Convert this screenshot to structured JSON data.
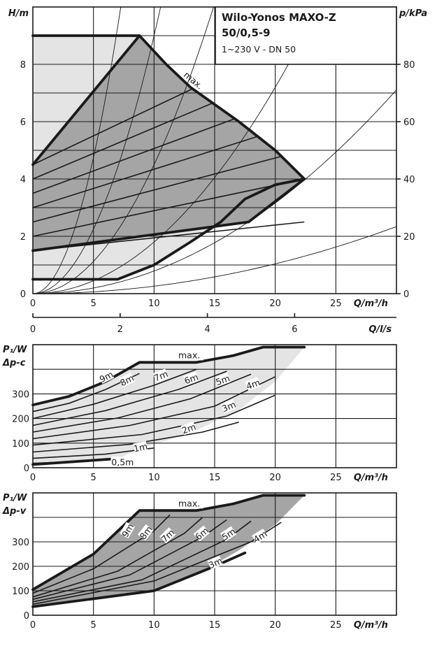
{
  "title": {
    "line1": "Wilo-Yonos MAXO-Z",
    "line2": "50/0,5-9",
    "line3": "1~230 V - DN 50"
  },
  "colors": {
    "line": "#1a1a1a",
    "dark_area": "#a5a5a5",
    "light_area": "#e4e4e4",
    "background": "#ffffff"
  },
  "chart_data": [
    {
      "type": "line",
      "name": "pump curve H(Q)",
      "xlabel": "Q/m³/h",
      "ylabel": "H/m",
      "y2label": "p/kPa",
      "x2label": "Q/l/s",
      "xlim": [
        0,
        30
      ],
      "ylim": [
        0,
        10
      ],
      "y2lim": [
        0,
        100
      ],
      "x2lim": [
        0,
        8.33
      ],
      "xticks": [
        "0",
        "5",
        "10",
        "15",
        "20",
        "25"
      ],
      "yticks": [
        "0",
        "2",
        "4",
        "6",
        "8"
      ],
      "y2ticks": [
        "0",
        "20",
        "40",
        "60",
        "80"
      ],
      "x2ticks": [
        "0",
        "2",
        "4",
        "6"
      ],
      "grid": true,
      "max_curve": {
        "label": "max.",
        "points": [
          [
            0,
            9
          ],
          [
            8.8,
            9
          ],
          [
            11,
            8
          ],
          [
            13,
            7.2
          ],
          [
            17,
            6
          ],
          [
            20,
            5
          ],
          [
            22.4,
            4
          ]
        ]
      },
      "min_curve": {
        "points": [
          [
            0,
            0.5
          ],
          [
            7,
            0.5
          ],
          [
            10,
            1
          ],
          [
            13,
            1.8
          ],
          [
            15.5,
            2.5
          ],
          [
            17.5,
            3.3
          ],
          [
            20,
            3.8
          ],
          [
            22.4,
            4
          ]
        ]
      },
      "dp_c_boundary": {
        "points": [
          [
            0,
            1.5
          ],
          [
            17.8,
            2.5
          ],
          [
            22.4,
            4
          ]
        ]
      },
      "dp_v_boundary": {
        "points": [
          [
            0,
            4.5
          ],
          [
            8.8,
            9
          ]
        ]
      },
      "setpoint_lines": [
        {
          "h_start": 4.5,
          "h_end": 9.0
        },
        {
          "h_start": 4.0,
          "h_end": 8.0
        },
        {
          "h_start": 3.5,
          "h_end": 7.0
        },
        {
          "h_start": 3.0,
          "h_end": 6.0
        },
        {
          "h_start": 2.5,
          "h_end": 5.0
        },
        {
          "h_start": 2.0,
          "h_end": 4.0
        },
        {
          "h_start": 1.5,
          "h_end": 2.5
        }
      ],
      "constant_pressure_levels": [
        9,
        8,
        7,
        6,
        5,
        4,
        3,
        2,
        1,
        0.5
      ],
      "system_curve_constants": [
        0.19,
        0.09,
        0.045,
        0.018,
        0.0079,
        0.0026
      ]
    },
    {
      "type": "line",
      "name": "power Δp-c",
      "mode_label": "Δp-c",
      "ylabel": "P₁/W",
      "xlabel": "Q/m³/h",
      "xlim": [
        0,
        30
      ],
      "ylim": [
        0,
        500
      ],
      "xticks": [
        "0",
        "5",
        "10",
        "15",
        "20",
        "25"
      ],
      "yticks": [
        "0",
        "100",
        "200",
        "300"
      ],
      "grid": true,
      "max_label": "max.",
      "series": [
        {
          "name": "9m",
          "values": [
            [
              0,
              255
            ],
            [
              3,
              290
            ],
            [
              6,
              350
            ],
            [
              8.8,
              428
            ]
          ]
        },
        {
          "name": "8m",
          "values": [
            [
              0,
              228
            ],
            [
              3,
              262
            ],
            [
              6,
              318
            ],
            [
              8.8,
              383
            ]
          ]
        },
        {
          "name": "7m",
          "values": [
            [
              0,
              200
            ],
            [
              5,
              258
            ],
            [
              10,
              335
            ],
            [
              13.5,
              400
            ]
          ]
        },
        {
          "name": "6m",
          "values": [
            [
              0,
              172
            ],
            [
              6,
              232
            ],
            [
              12,
              318
            ],
            [
              16,
              392
            ]
          ]
        },
        {
          "name": "5m",
          "values": [
            [
              0,
              145
            ],
            [
              7,
              202
            ],
            [
              13,
              280
            ],
            [
              18,
              380
            ]
          ]
        },
        {
          "name": "4m",
          "values": [
            [
              0,
              118
            ],
            [
              8,
              172
            ],
            [
              15,
              250
            ],
            [
              20,
              370
            ]
          ]
        },
        {
          "name": "3m",
          "values": [
            [
              0,
              92
            ],
            [
              9,
              135
            ],
            [
              16,
              210
            ],
            [
              20,
              295
            ]
          ]
        },
        {
          "name": "2m",
          "values": [
            [
              0,
              64
            ],
            [
              8,
              95
            ],
            [
              14,
              145
            ],
            [
              17,
              185
            ]
          ]
        },
        {
          "name": "1m",
          "values": [
            [
              0,
              38
            ],
            [
              6,
              55
            ],
            [
              10,
              80
            ]
          ]
        },
        {
          "name": "0,5m",
          "values": [
            [
              0,
              18
            ],
            [
              4,
              26
            ],
            [
              7,
              38
            ]
          ]
        }
      ],
      "upper_boundary": [
        [
          0,
          255
        ],
        [
          3,
          290
        ],
        [
          6,
          350
        ],
        [
          8.8,
          428
        ],
        [
          13.5,
          428
        ],
        [
          16.5,
          455
        ],
        [
          19,
          490
        ],
        [
          22.4,
          490
        ]
      ],
      "lower_boundary": [
        [
          0,
          13
        ],
        [
          7,
          37
        ]
      ],
      "shaded_edge": [
        [
          22.4,
          490
        ],
        [
          20,
          350
        ],
        [
          17,
          235
        ],
        [
          13,
          140
        ],
        [
          9,
          80
        ]
      ]
    },
    {
      "type": "line",
      "name": "power Δp-v",
      "mode_label": "Δp-v",
      "ylabel": "P₁/W",
      "xlabel": "Q/m³/h",
      "xlim": [
        0,
        30
      ],
      "ylim": [
        0,
        500
      ],
      "xticks": [
        "0",
        "5",
        "10",
        "15",
        "20",
        "25"
      ],
      "yticks": [
        "0",
        "100",
        "200",
        "300"
      ],
      "grid": true,
      "max_label": "max.",
      "series": [
        {
          "name": "9m",
          "values": [
            [
              0,
              105
            ],
            [
              5,
              250
            ],
            [
              8.8,
              428
            ]
          ]
        },
        {
          "name": "8m",
          "values": [
            [
              0,
              90
            ],
            [
              5,
              190
            ],
            [
              10,
              345
            ],
            [
              11.3,
              410
            ]
          ]
        },
        {
          "name": "7m",
          "values": [
            [
              0,
              75
            ],
            [
              7,
              180
            ],
            [
              12.5,
              335
            ],
            [
              14,
              400
            ]
          ]
        },
        {
          "name": "6m",
          "values": [
            [
              0,
              65
            ],
            [
              8,
              165
            ],
            [
              14,
              320
            ],
            [
              16,
              390
            ]
          ]
        },
        {
          "name": "5m",
          "values": [
            [
              0,
              55
            ],
            [
              9,
              145
            ],
            [
              16,
              310
            ],
            [
              18,
              385
            ]
          ]
        },
        {
          "name": "4m",
          "values": [
            [
              0,
              45
            ],
            [
              10,
              140
            ],
            [
              18,
              300
            ],
            [
              20.5,
              380
            ]
          ]
        },
        {
          "name": "3m",
          "values": [
            [
              0,
              35
            ],
            [
              10,
              100
            ],
            [
              15,
              200
            ],
            [
              17.5,
              255
            ]
          ]
        }
      ],
      "upper_boundary": [
        [
          0,
          105
        ],
        [
          5,
          250
        ],
        [
          8.8,
          428
        ],
        [
          13.5,
          428
        ],
        [
          16.5,
          455
        ],
        [
          19,
          490
        ],
        [
          22.4,
          490
        ]
      ],
      "lower_boundary": [
        [
          0,
          35
        ],
        [
          10,
          100
        ],
        [
          15,
          200
        ],
        [
          17.5,
          255
        ]
      ],
      "shaded_edge": [
        [
          22.4,
          490
        ],
        [
          20,
          370
        ],
        [
          17,
          265
        ],
        [
          14,
          180
        ],
        [
          10.5,
          110
        ]
      ]
    }
  ]
}
